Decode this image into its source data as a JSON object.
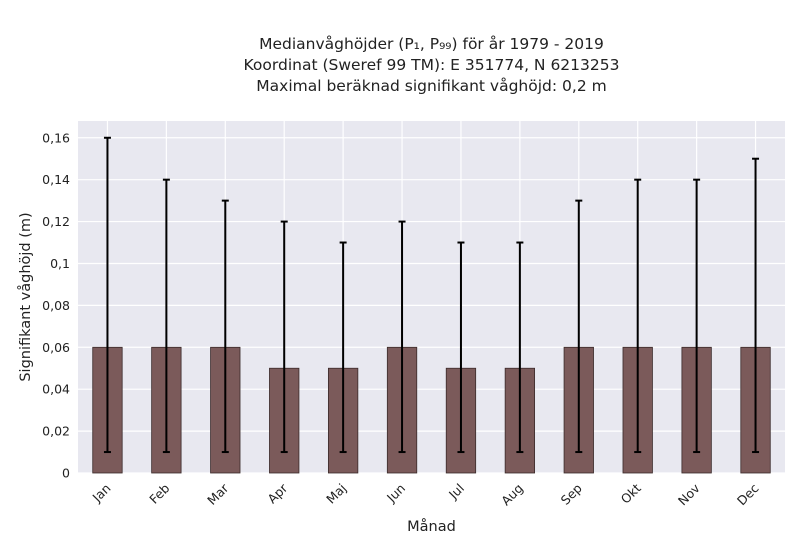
{
  "chart_data": {
    "type": "bar",
    "title_lines": [
      "Medianvåghöjder (P₁, P₉₉) för år 1979 - 2019",
      "Koordinat (Sweref 99 TM): E 351774, N 6213253",
      "Maximal beräknad signifikant våghöjd: 0,2 m"
    ],
    "xlabel": "Månad",
    "ylabel": "Signifikant våghöjd (m)",
    "categories": [
      "Jan",
      "Feb",
      "Mar",
      "Apr",
      "Maj",
      "Jun",
      "Jul",
      "Aug",
      "Sep",
      "Okt",
      "Nov",
      "Dec"
    ],
    "values": [
      0.06,
      0.06,
      0.06,
      0.05,
      0.05,
      0.06,
      0.05,
      0.05,
      0.06,
      0.06,
      0.06,
      0.06
    ],
    "p1": [
      0.01,
      0.01,
      0.01,
      0.01,
      0.01,
      0.01,
      0.01,
      0.01,
      0.01,
      0.01,
      0.01,
      0.01
    ],
    "p99": [
      0.16,
      0.14,
      0.13,
      0.12,
      0.11,
      0.12,
      0.11,
      0.11,
      0.13,
      0.14,
      0.14,
      0.15
    ],
    "ylim": [
      0,
      0.168
    ],
    "yticks": [
      0,
      0.02,
      0.04,
      0.06,
      0.08,
      0.1,
      0.12,
      0.14,
      0.16
    ],
    "ytick_labels": [
      "0",
      "0,02",
      "0,04",
      "0,06",
      "0,08",
      "0,1",
      "0,12",
      "0,14",
      "0,16"
    ],
    "grid": true,
    "colors": {
      "bar": "#7b5a5a",
      "bar_edge": "#3a2a2a",
      "errorbar": "#000000",
      "plot_bg": "#e8e8f0",
      "grid": "#ffffff"
    }
  }
}
